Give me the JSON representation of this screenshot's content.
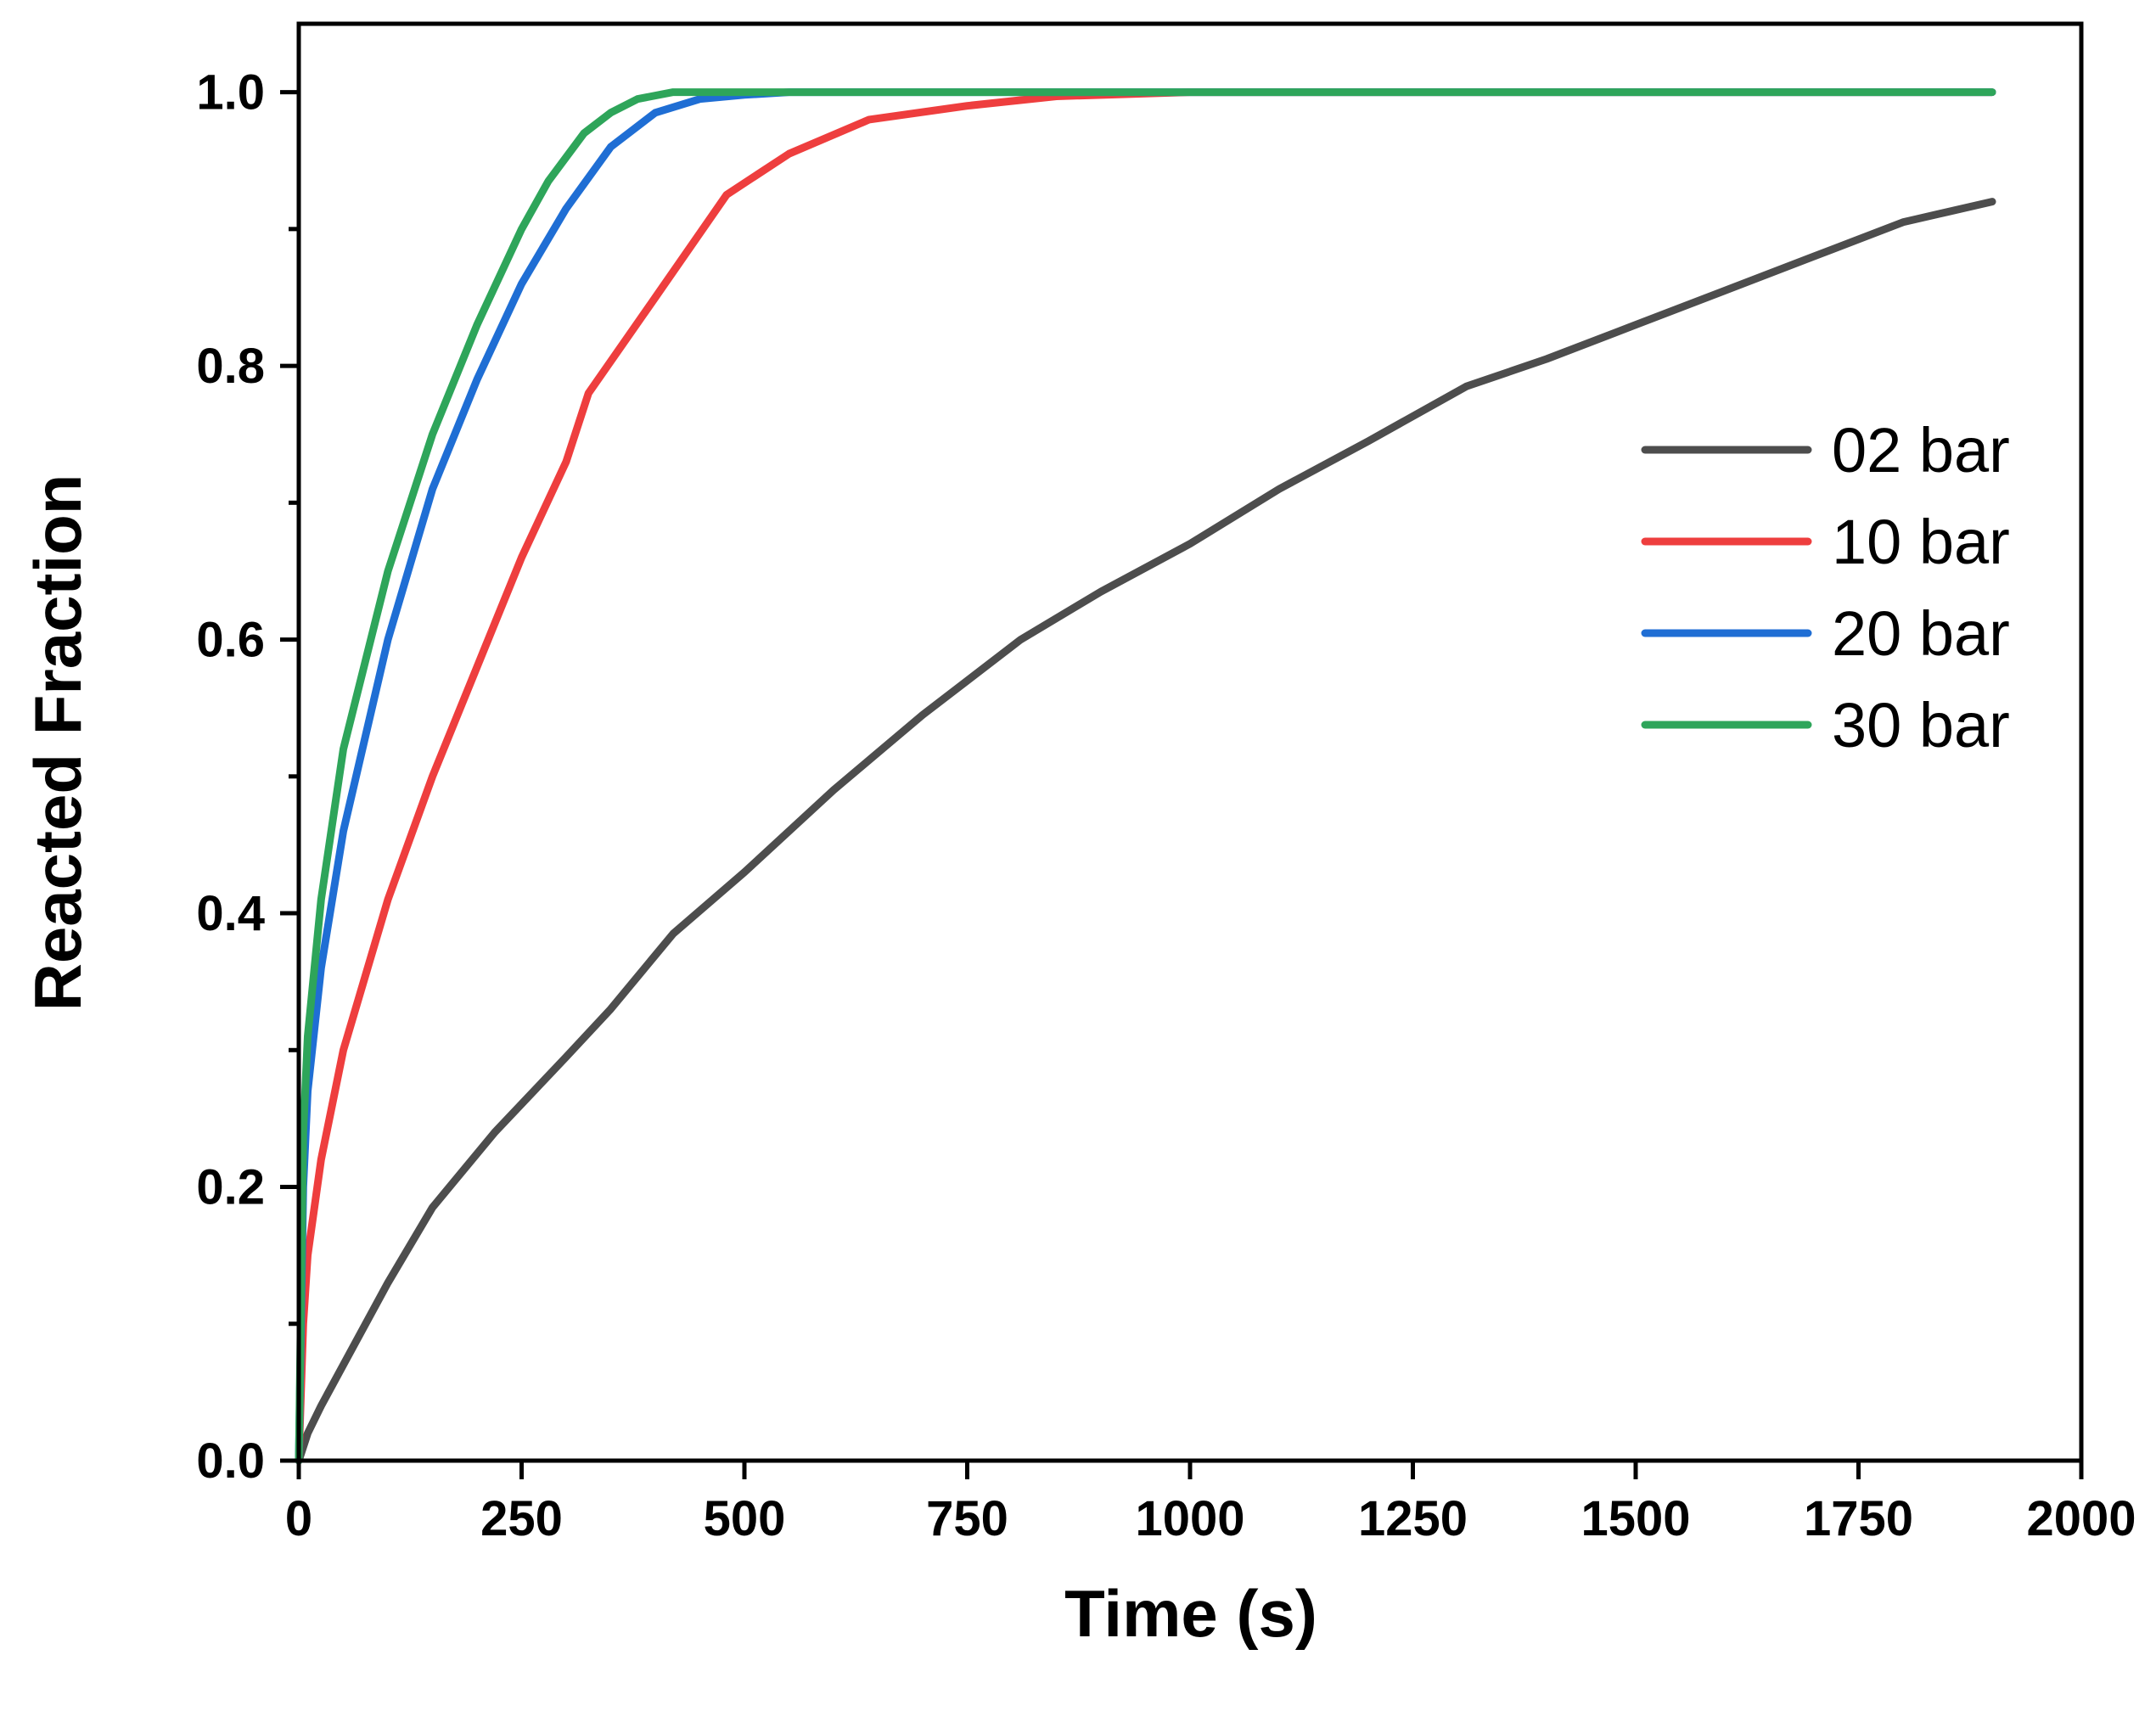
{
  "chart_data": {
    "type": "line",
    "title": "",
    "xlabel": "Time (s)",
    "ylabel": "Reacted Fraction",
    "xlim": [
      0,
      2000
    ],
    "ylim": [
      0,
      1.05
    ],
    "x_ticks": [
      0,
      250,
      500,
      750,
      1000,
      1250,
      1500,
      1750,
      2000
    ],
    "x_tick_labels": [
      "0",
      "250",
      "500",
      "750",
      "1000",
      "1250",
      "1500",
      "1750",
      "2000"
    ],
    "y_ticks": [
      0.0,
      0.2,
      0.4,
      0.6,
      0.8,
      1.0
    ],
    "y_tick_labels": [
      "0.0",
      "0.2",
      "0.4",
      "0.6",
      "0.8",
      "1.0"
    ],
    "y_minor_ticks": [
      0.1,
      0.3,
      0.5,
      0.7,
      0.9
    ],
    "grid": false,
    "legend_position": "right",
    "series": [
      {
        "name": "02 bar",
        "color": "#4d4d4d",
        "x": [
          0,
          10,
          25,
          50,
          100,
          150,
          220,
          300,
          350,
          420,
          500,
          600,
          700,
          810,
          900,
          1000,
          1100,
          1200,
          1310,
          1400,
          1500,
          1600,
          1700,
          1800,
          1900
        ],
        "y": [
          0,
          0.02,
          0.04,
          0.07,
          0.13,
          0.185,
          0.24,
          0.295,
          0.33,
          0.385,
          0.43,
          0.49,
          0.545,
          0.6,
          0.635,
          0.67,
          0.71,
          0.745,
          0.785,
          0.805,
          0.83,
          0.855,
          0.88,
          0.905,
          0.92
        ]
      },
      {
        "name": "10 bar",
        "color": "#ee3e3e",
        "x": [
          0,
          5,
          10,
          25,
          50,
          100,
          150,
          200,
          250,
          300,
          325,
          400,
          480,
          550,
          640,
          750,
          850,
          1000,
          1900
        ],
        "y": [
          0,
          0.1,
          0.15,
          0.22,
          0.3,
          0.41,
          0.5,
          0.58,
          0.66,
          0.73,
          0.78,
          0.85,
          0.925,
          0.955,
          0.98,
          0.99,
          0.997,
          1.0,
          1.0
        ]
      },
      {
        "name": "20 bar",
        "color": "#1f6ed4",
        "x": [
          0,
          5,
          10,
          25,
          50,
          100,
          150,
          200,
          250,
          300,
          350,
          400,
          450,
          500,
          550,
          600,
          1900
        ],
        "y": [
          0,
          0.2,
          0.27,
          0.36,
          0.46,
          0.6,
          0.71,
          0.79,
          0.86,
          0.915,
          0.96,
          0.985,
          0.995,
          0.998,
          1.0,
          1.0,
          1.0
        ]
      },
      {
        "name": "30 bar",
        "color": "#2ea55a",
        "x": [
          0,
          5,
          10,
          25,
          50,
          100,
          150,
          200,
          250,
          280,
          320,
          350,
          380,
          420,
          500,
          1900
        ],
        "y": [
          0,
          0.24,
          0.31,
          0.41,
          0.52,
          0.65,
          0.75,
          0.83,
          0.9,
          0.935,
          0.97,
          0.985,
          0.995,
          1.0,
          1.0,
          1.0
        ]
      }
    ]
  }
}
